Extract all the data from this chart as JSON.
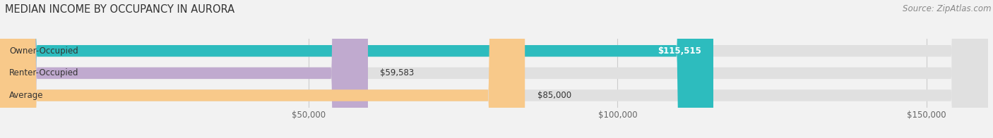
{
  "title": "MEDIAN INCOME BY OCCUPANCY IN AURORA",
  "source": "Source: ZipAtlas.com",
  "categories": [
    "Owner-Occupied",
    "Renter-Occupied",
    "Average"
  ],
  "values": [
    115515,
    59583,
    85000
  ],
  "bar_colors": [
    "#2dbcbe",
    "#c0aacf",
    "#f8c98a"
  ],
  "bar_bg_color": "#e0e0e0",
  "value_labels": [
    "$115,515",
    "$59,583",
    "$85,000"
  ],
  "value_label_inside": [
    true,
    false,
    false
  ],
  "xlim_max": 160000,
  "xticks": [
    50000,
    100000,
    150000
  ],
  "xtick_labels": [
    "$50,000",
    "$100,000",
    "$150,000"
  ],
  "title_fontsize": 10.5,
  "source_fontsize": 8.5,
  "tick_fontsize": 8.5,
  "bar_label_fontsize": 8.5,
  "value_label_fontsize": 8.5,
  "bar_height": 0.52,
  "background_color": "#f2f2f2",
  "grid_color": "#cccccc",
  "text_color": "#333333",
  "source_color": "#888888"
}
